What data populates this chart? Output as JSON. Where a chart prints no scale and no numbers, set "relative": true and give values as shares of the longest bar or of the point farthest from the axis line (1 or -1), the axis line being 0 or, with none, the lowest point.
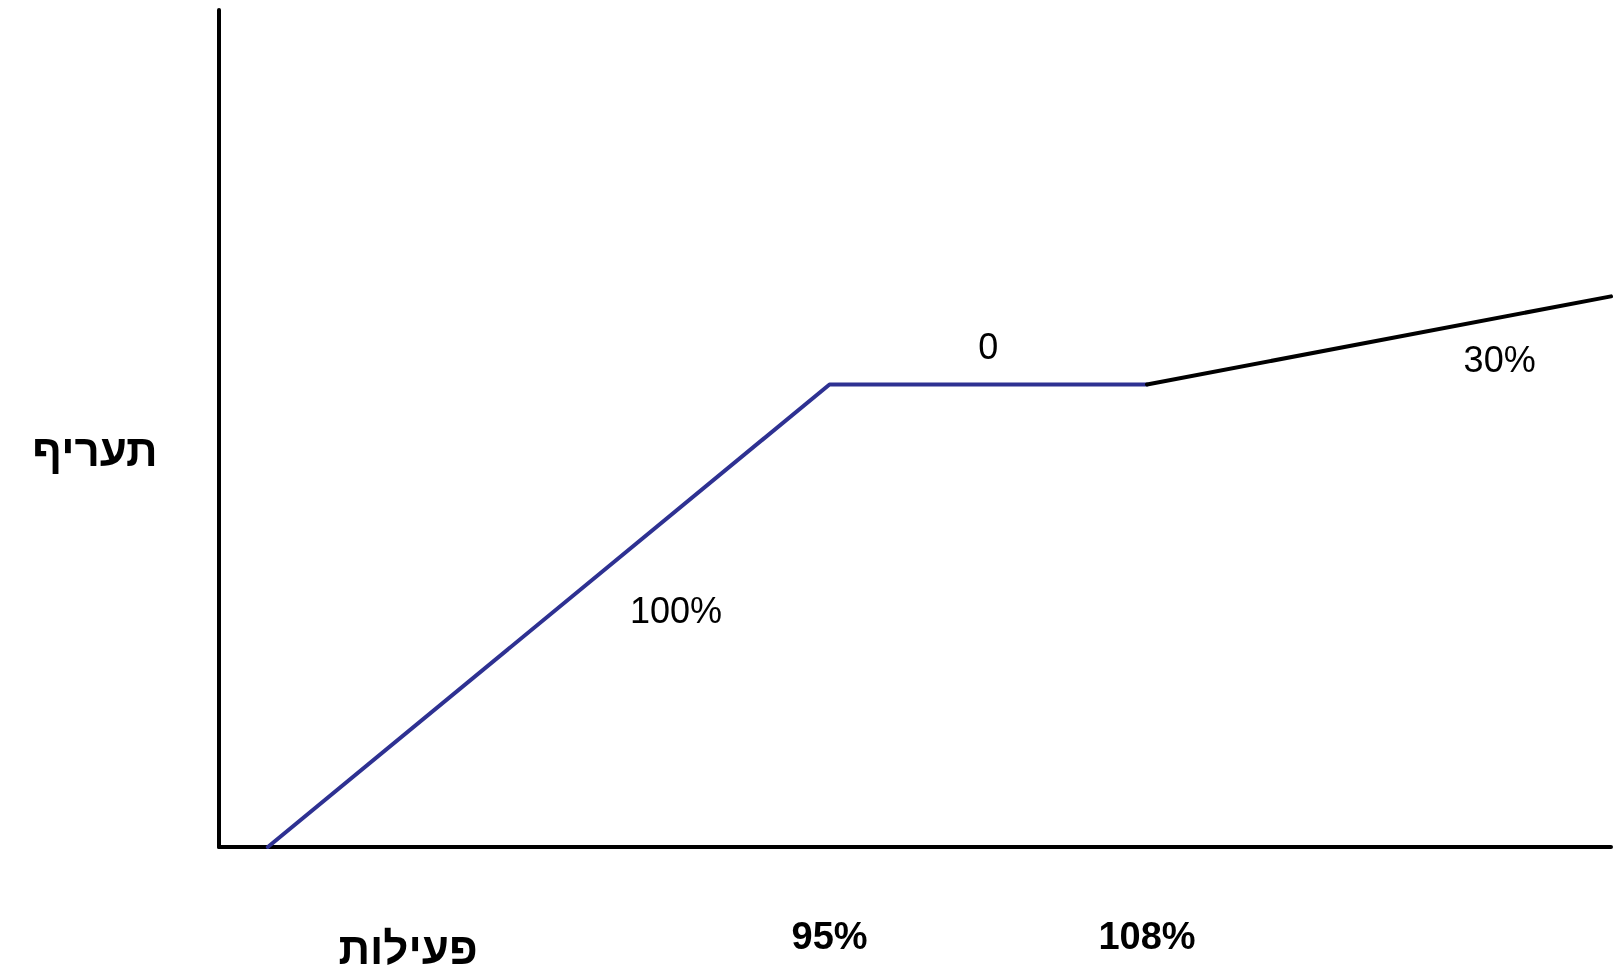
{
  "chart_data": {
    "type": "line",
    "xlabel": "פעילות",
    "ylabel": "תעריף",
    "relative": true,
    "xlim": [
      70,
      127
    ],
    "xticks": [
      {
        "value": 95,
        "label": "95%"
      },
      {
        "value": 108,
        "label": "108%"
      }
    ],
    "series": [
      {
        "color": "#2e3192",
        "x": [
          72,
          95,
          108
        ],
        "values": [
          0,
          0.84,
          0.84
        ]
      },
      {
        "color": "#000000",
        "x": [
          108,
          127
        ],
        "values": [
          0.84,
          1
        ]
      }
    ],
    "annotations": [
      "100%",
      "0",
      "30%"
    ],
    "grid": false,
    "marker": "none",
    "line_style": "solid"
  }
}
